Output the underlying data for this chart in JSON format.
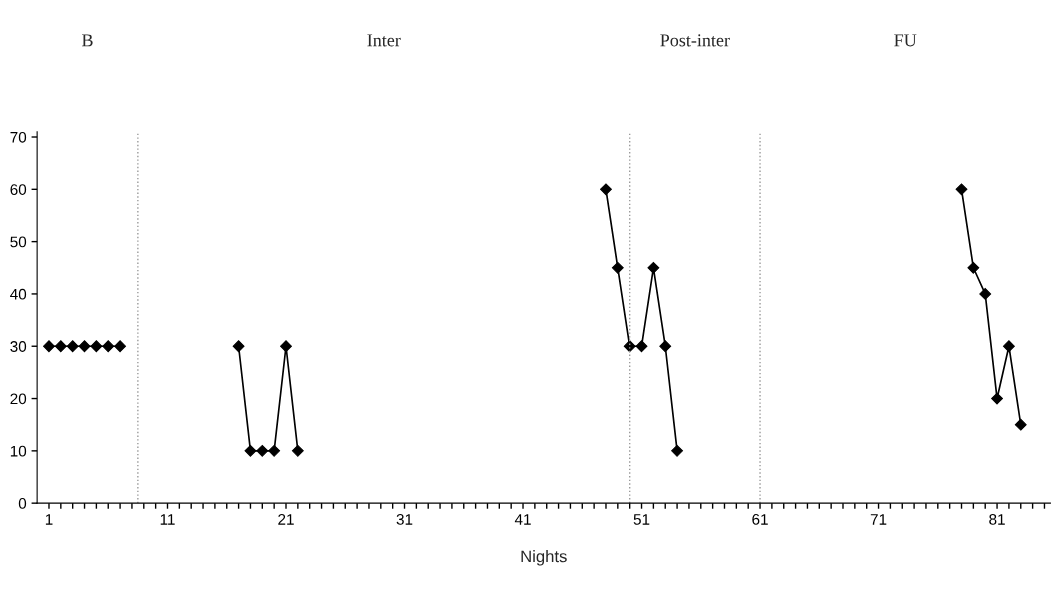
{
  "chart_data": {
    "type": "line",
    "xlabel": "Nights",
    "annotations": [
      "B",
      "Inter",
      "Post-inter",
      "FU"
    ],
    "series": [
      {
        "color": "#000000",
        "x": [
          1,
          2,
          3,
          4,
          5,
          6,
          7
        ],
        "values": [
          30,
          30,
          30,
          30,
          30,
          30,
          30
        ]
      },
      {
        "color": "#000000",
        "x": [
          17,
          18,
          19,
          20,
          21,
          22
        ],
        "values": [
          30,
          10,
          10,
          10,
          30,
          10
        ]
      },
      {
        "color": "#000000",
        "x": [
          48,
          49,
          50,
          51,
          52,
          53,
          54
        ],
        "values": [
          60,
          45,
          30,
          30,
          45,
          30,
          10
        ]
      },
      {
        "color": "#000000",
        "x": [
          78,
          79,
          80,
          81,
          82,
          83
        ],
        "values": [
          60,
          45,
          40,
          20,
          30,
          15
        ]
      }
    ],
    "marker": "diamond",
    "line_style": "solid",
    "grid": false,
    "legend": false,
    "ref_lines": [
      {
        "axis": "x",
        "value": 8.5,
        "color": "#999999",
        "line_style": "dotted"
      },
      {
        "axis": "x",
        "value": 50,
        "color": "#999999",
        "line_style": "dotted"
      },
      {
        "axis": "x",
        "value": 61,
        "color": "#999999",
        "line_style": "dotted"
      }
    ],
    "xlim": [
      0,
      85.5
    ],
    "ylim": [
      0,
      71
    ],
    "xticks": [
      1,
      {
        "value": 2,
        "label": null
      },
      {
        "value": 3,
        "label": null
      },
      {
        "value": 4,
        "label": null
      },
      {
        "value": 5,
        "label": null
      },
      {
        "value": 6,
        "label": null
      },
      {
        "value": 7,
        "label": null
      },
      {
        "value": 8,
        "label": null
      },
      {
        "value": 9,
        "label": null
      },
      {
        "value": 10,
        "label": null
      },
      11,
      {
        "value": 12,
        "label": null
      },
      {
        "value": 13,
        "label": null
      },
      {
        "value": 14,
        "label": null
      },
      {
        "value": 15,
        "label": null
      },
      {
        "value": 16,
        "label": null
      },
      {
        "value": 17,
        "label": null
      },
      {
        "value": 18,
        "label": null
      },
      {
        "value": 19,
        "label": null
      },
      {
        "value": 20,
        "label": null
      },
      21,
      {
        "value": 22,
        "label": null
      },
      {
        "value": 23,
        "label": null
      },
      {
        "value": 24,
        "label": null
      },
      {
        "value": 25,
        "label": null
      },
      {
        "value": 26,
        "label": null
      },
      {
        "value": 27,
        "label": null
      },
      {
        "value": 28,
        "label": null
      },
      {
        "value": 29,
        "label": null
      },
      {
        "value": 30,
        "label": null
      },
      31,
      {
        "value": 32,
        "label": null
      },
      {
        "value": 33,
        "label": null
      },
      {
        "value": 34,
        "label": null
      },
      {
        "value": 35,
        "label": null
      },
      {
        "value": 36,
        "label": null
      },
      {
        "value": 37,
        "label": null
      },
      {
        "value": 38,
        "label": null
      },
      {
        "value": 39,
        "label": null
      },
      {
        "value": 40,
        "label": null
      },
      41,
      {
        "value": 42,
        "label": null
      },
      {
        "value": 43,
        "label": null
      },
      {
        "value": 44,
        "label": null
      },
      {
        "value": 45,
        "label": null
      },
      {
        "value": 46,
        "label": null
      },
      {
        "value": 47,
        "label": null
      },
      {
        "value": 48,
        "label": null
      },
      {
        "value": 49,
        "label": null
      },
      {
        "value": 50,
        "label": null
      },
      51,
      {
        "value": 52,
        "label": null
      },
      {
        "value": 53,
        "label": null
      },
      {
        "value": 54,
        "label": null
      },
      {
        "value": 55,
        "label": null
      },
      {
        "value": 56,
        "label": null
      },
      {
        "value": 57,
        "label": null
      },
      {
        "value": 58,
        "label": null
      },
      {
        "value": 59,
        "label": null
      },
      {
        "value": 60,
        "label": null
      },
      61,
      {
        "value": 62,
        "label": null
      },
      {
        "value": 63,
        "label": null
      },
      {
        "value": 64,
        "label": null
      },
      {
        "value": 65,
        "label": null
      },
      {
        "value": 66,
        "label": null
      },
      {
        "value": 67,
        "label": null
      },
      {
        "value": 68,
        "label": null
      },
      {
        "value": 69,
        "label": null
      },
      {
        "value": 70,
        "label": null
      },
      71,
      {
        "value": 72,
        "label": null
      },
      {
        "value": 73,
        "label": null
      },
      {
        "value": 74,
        "label": null
      },
      {
        "value": 75,
        "label": null
      },
      {
        "value": 76,
        "label": null
      },
      {
        "value": 77,
        "label": null
      },
      {
        "value": 78,
        "label": null
      },
      {
        "value": 79,
        "label": null
      },
      {
        "value": 80,
        "label": null
      },
      81,
      {
        "value": 82,
        "label": null
      },
      {
        "value": 83,
        "label": null
      },
      {
        "value": 84,
        "label": null
      },
      {
        "value": 85,
        "label": null
      }
    ],
    "yticks": [
      0,
      10,
      20,
      30,
      40,
      50,
      60,
      70
    ]
  }
}
